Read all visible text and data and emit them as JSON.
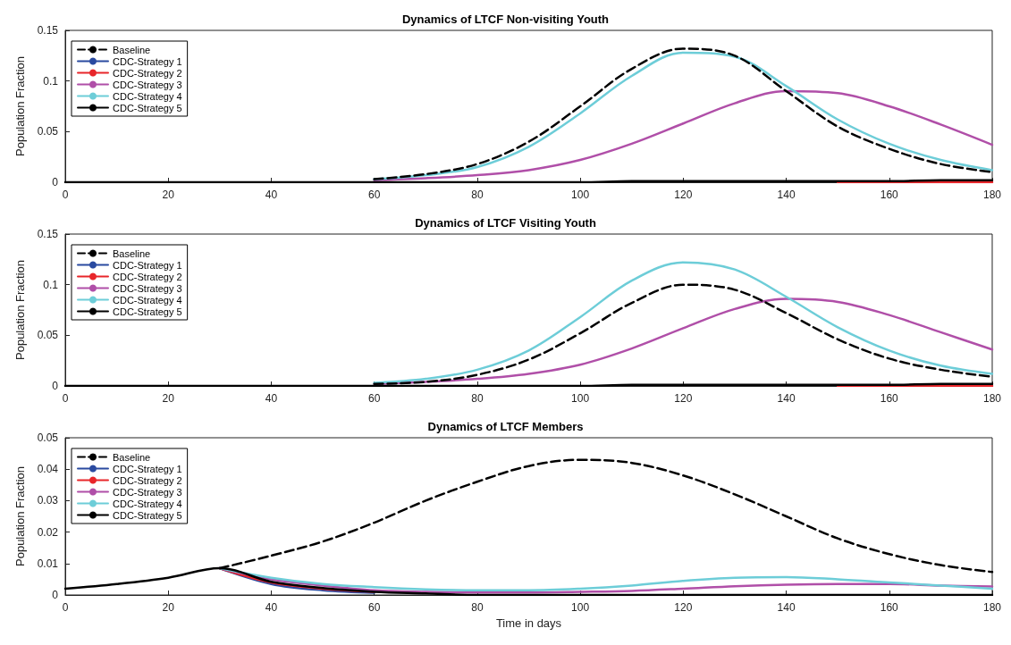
{
  "chart_data": [
    {
      "type": "line",
      "title": "Dynamics of LTCF Non-visiting Youth",
      "ylabel": "Population Fraction",
      "legend": "top left",
      "marker": "none",
      "grid": false,
      "xlim": [
        0,
        180
      ],
      "xticks": [
        0,
        20,
        40,
        60,
        80,
        100,
        120,
        140,
        160,
        180
      ],
      "ylim": [
        0,
        0.15
      ],
      "yticks": [
        0,
        0.05,
        0.1,
        0.15
      ],
      "x": [
        0,
        10,
        20,
        30,
        40,
        50,
        60,
        70,
        80,
        90,
        100,
        110,
        120,
        130,
        140,
        150,
        160,
        170,
        180
      ],
      "series": [
        {
          "name": "Baseline",
          "color": "#000000",
          "line_style": "dashed",
          "values": [
            null,
            null,
            null,
            null,
            null,
            null,
            0.003,
            0.008,
            0.018,
            0.04,
            0.075,
            0.112,
            0.132,
            0.125,
            0.09,
            0.055,
            0.033,
            0.018,
            0.01
          ]
        },
        {
          "name": "CDC-Strategy 1",
          "color": "#2a4aa0",
          "values": [
            null,
            null,
            null,
            null,
            null,
            null,
            null,
            null,
            null,
            null,
            null,
            null,
            null,
            null,
            null,
            null,
            null,
            null,
            null
          ]
        },
        {
          "name": "CDC-Strategy 2",
          "color": "#e8262a",
          "values": [
            null,
            null,
            null,
            null,
            null,
            null,
            null,
            null,
            null,
            null,
            null,
            null,
            null,
            null,
            null,
            0,
            0,
            0,
            0
          ]
        },
        {
          "name": "CDC-Strategy 3",
          "color": "#b04fa8",
          "values": [
            null,
            null,
            null,
            null,
            null,
            null,
            0.002,
            0.004,
            0.007,
            0.012,
            0.022,
            0.038,
            0.058,
            0.078,
            0.09,
            0.088,
            0.075,
            0.057,
            0.037
          ]
        },
        {
          "name": "CDC-Strategy 4",
          "color": "#6dcdd8",
          "values": [
            null,
            null,
            null,
            null,
            null,
            null,
            0.003,
            0.007,
            0.015,
            0.035,
            0.068,
            0.105,
            0.128,
            0.124,
            0.095,
            0.062,
            0.038,
            0.022,
            0.012
          ]
        },
        {
          "name": "CDC-Strategy 5",
          "color": "#000000",
          "values": [
            0,
            0,
            0,
            0,
            0,
            0,
            0,
            0,
            0,
            0,
            0,
            0.001,
            0.001,
            0.001,
            0.001,
            0.001,
            0.001,
            0.002,
            0.002
          ]
        }
      ]
    },
    {
      "type": "line",
      "title": "Dynamics of LTCF Visiting Youth",
      "ylabel": "Population Fraction",
      "legend": "top left",
      "marker": "none",
      "grid": false,
      "xlim": [
        0,
        180
      ],
      "xticks": [
        0,
        20,
        40,
        60,
        80,
        100,
        120,
        140,
        160,
        180
      ],
      "ylim": [
        0,
        0.15
      ],
      "yticks": [
        0,
        0.05,
        0.1,
        0.15
      ],
      "x": [
        0,
        10,
        20,
        30,
        40,
        50,
        60,
        70,
        80,
        90,
        100,
        110,
        120,
        130,
        140,
        150,
        160,
        170,
        180
      ],
      "series": [
        {
          "name": "Baseline",
          "color": "#000000",
          "line_style": "dashed",
          "values": [
            null,
            null,
            null,
            null,
            null,
            null,
            0.002,
            0.004,
            0.011,
            0.026,
            0.052,
            0.082,
            0.1,
            0.095,
            0.072,
            0.046,
            0.027,
            0.016,
            0.009
          ]
        },
        {
          "name": "CDC-Strategy 1",
          "color": "#2a4aa0",
          "values": [
            null,
            null,
            null,
            null,
            null,
            null,
            null,
            null,
            null,
            null,
            null,
            null,
            null,
            null,
            null,
            null,
            null,
            null,
            null
          ]
        },
        {
          "name": "CDC-Strategy 2",
          "color": "#e8262a",
          "values": [
            null,
            null,
            null,
            null,
            null,
            null,
            null,
            null,
            null,
            null,
            null,
            null,
            null,
            null,
            null,
            0,
            0,
            0,
            0
          ]
        },
        {
          "name": "CDC-Strategy 3",
          "color": "#b04fa8",
          "values": [
            null,
            null,
            null,
            null,
            null,
            null,
            0.002,
            0.004,
            0.007,
            0.012,
            0.021,
            0.037,
            0.057,
            0.076,
            0.086,
            0.083,
            0.07,
            0.053,
            0.036
          ]
        },
        {
          "name": "CDC-Strategy 4",
          "color": "#6dcdd8",
          "values": [
            null,
            null,
            null,
            null,
            null,
            null,
            0.003,
            0.007,
            0.016,
            0.035,
            0.068,
            0.104,
            0.122,
            0.115,
            0.088,
            0.058,
            0.035,
            0.02,
            0.012
          ]
        },
        {
          "name": "CDC-Strategy 5",
          "color": "#000000",
          "values": [
            0,
            0,
            0,
            0,
            0,
            0,
            0,
            0,
            0,
            0,
            0,
            0.001,
            0.001,
            0.001,
            0.001,
            0.001,
            0.001,
            0.002,
            0.002
          ]
        }
      ]
    },
    {
      "type": "line",
      "title": "Dynamics of LTCF Members",
      "xlabel": "Time in days",
      "ylabel": "Population Fraction",
      "legend": "top left",
      "marker": "none",
      "grid": false,
      "xlim": [
        0,
        180
      ],
      "xticks": [
        0,
        20,
        40,
        60,
        80,
        100,
        120,
        140,
        160,
        180
      ],
      "ylim": [
        0,
        0.05
      ],
      "yticks": [
        0,
        0.01,
        0.02,
        0.03,
        0.04,
        0.05
      ],
      "x": [
        0,
        10,
        20,
        30,
        40,
        50,
        60,
        70,
        80,
        90,
        100,
        110,
        120,
        130,
        140,
        150,
        160,
        170,
        180
      ],
      "series": [
        {
          "name": "Baseline",
          "color": "#000000",
          "line_style": "dashed",
          "values": [
            null,
            null,
            null,
            0.0085,
            0.0125,
            0.017,
            0.023,
            0.03,
            0.036,
            0.041,
            0.043,
            0.042,
            0.038,
            0.032,
            0.025,
            0.018,
            0.013,
            0.0095,
            0.0073
          ]
        },
        {
          "name": "CDC-Strategy 1",
          "color": "#2a4aa0",
          "values": [
            null,
            null,
            null,
            0.0085,
            0.0035,
            0.0015,
            0.0007,
            null,
            null,
            null,
            null,
            null,
            null,
            null,
            null,
            null,
            null,
            null,
            null
          ]
        },
        {
          "name": "CDC-Strategy 2",
          "color": "#e8262a",
          "values": [
            null,
            null,
            null,
            0.0085,
            0.004,
            0.002,
            0.001,
            null,
            null,
            null,
            null,
            null,
            null,
            null,
            null,
            null,
            null,
            null,
            null
          ]
        },
        {
          "name": "CDC-Strategy 3",
          "color": "#b04fa8",
          "values": [
            null,
            null,
            null,
            0.0085,
            0.005,
            0.003,
            0.0015,
            0.001,
            0.0008,
            0.0008,
            0.001,
            0.0013,
            0.002,
            0.0028,
            0.0033,
            0.0035,
            0.0035,
            0.003,
            0.0027
          ]
        },
        {
          "name": "CDC-Strategy 4",
          "color": "#6dcdd8",
          "values": [
            null,
            null,
            null,
            0.0085,
            0.0055,
            0.0035,
            0.0025,
            0.0018,
            0.0015,
            0.0015,
            0.002,
            0.003,
            0.0045,
            0.0055,
            0.0057,
            0.005,
            0.004,
            0.003,
            0.002
          ]
        },
        {
          "name": "CDC-Strategy 5",
          "color": "#000000",
          "values": [
            0.002,
            0.0035,
            0.0055,
            0.0085,
            0.0042,
            0.0022,
            0.001,
            0.0005,
            0,
            0,
            0,
            0,
            0,
            0,
            0,
            0,
            0,
            0,
            0
          ]
        }
      ]
    }
  ]
}
